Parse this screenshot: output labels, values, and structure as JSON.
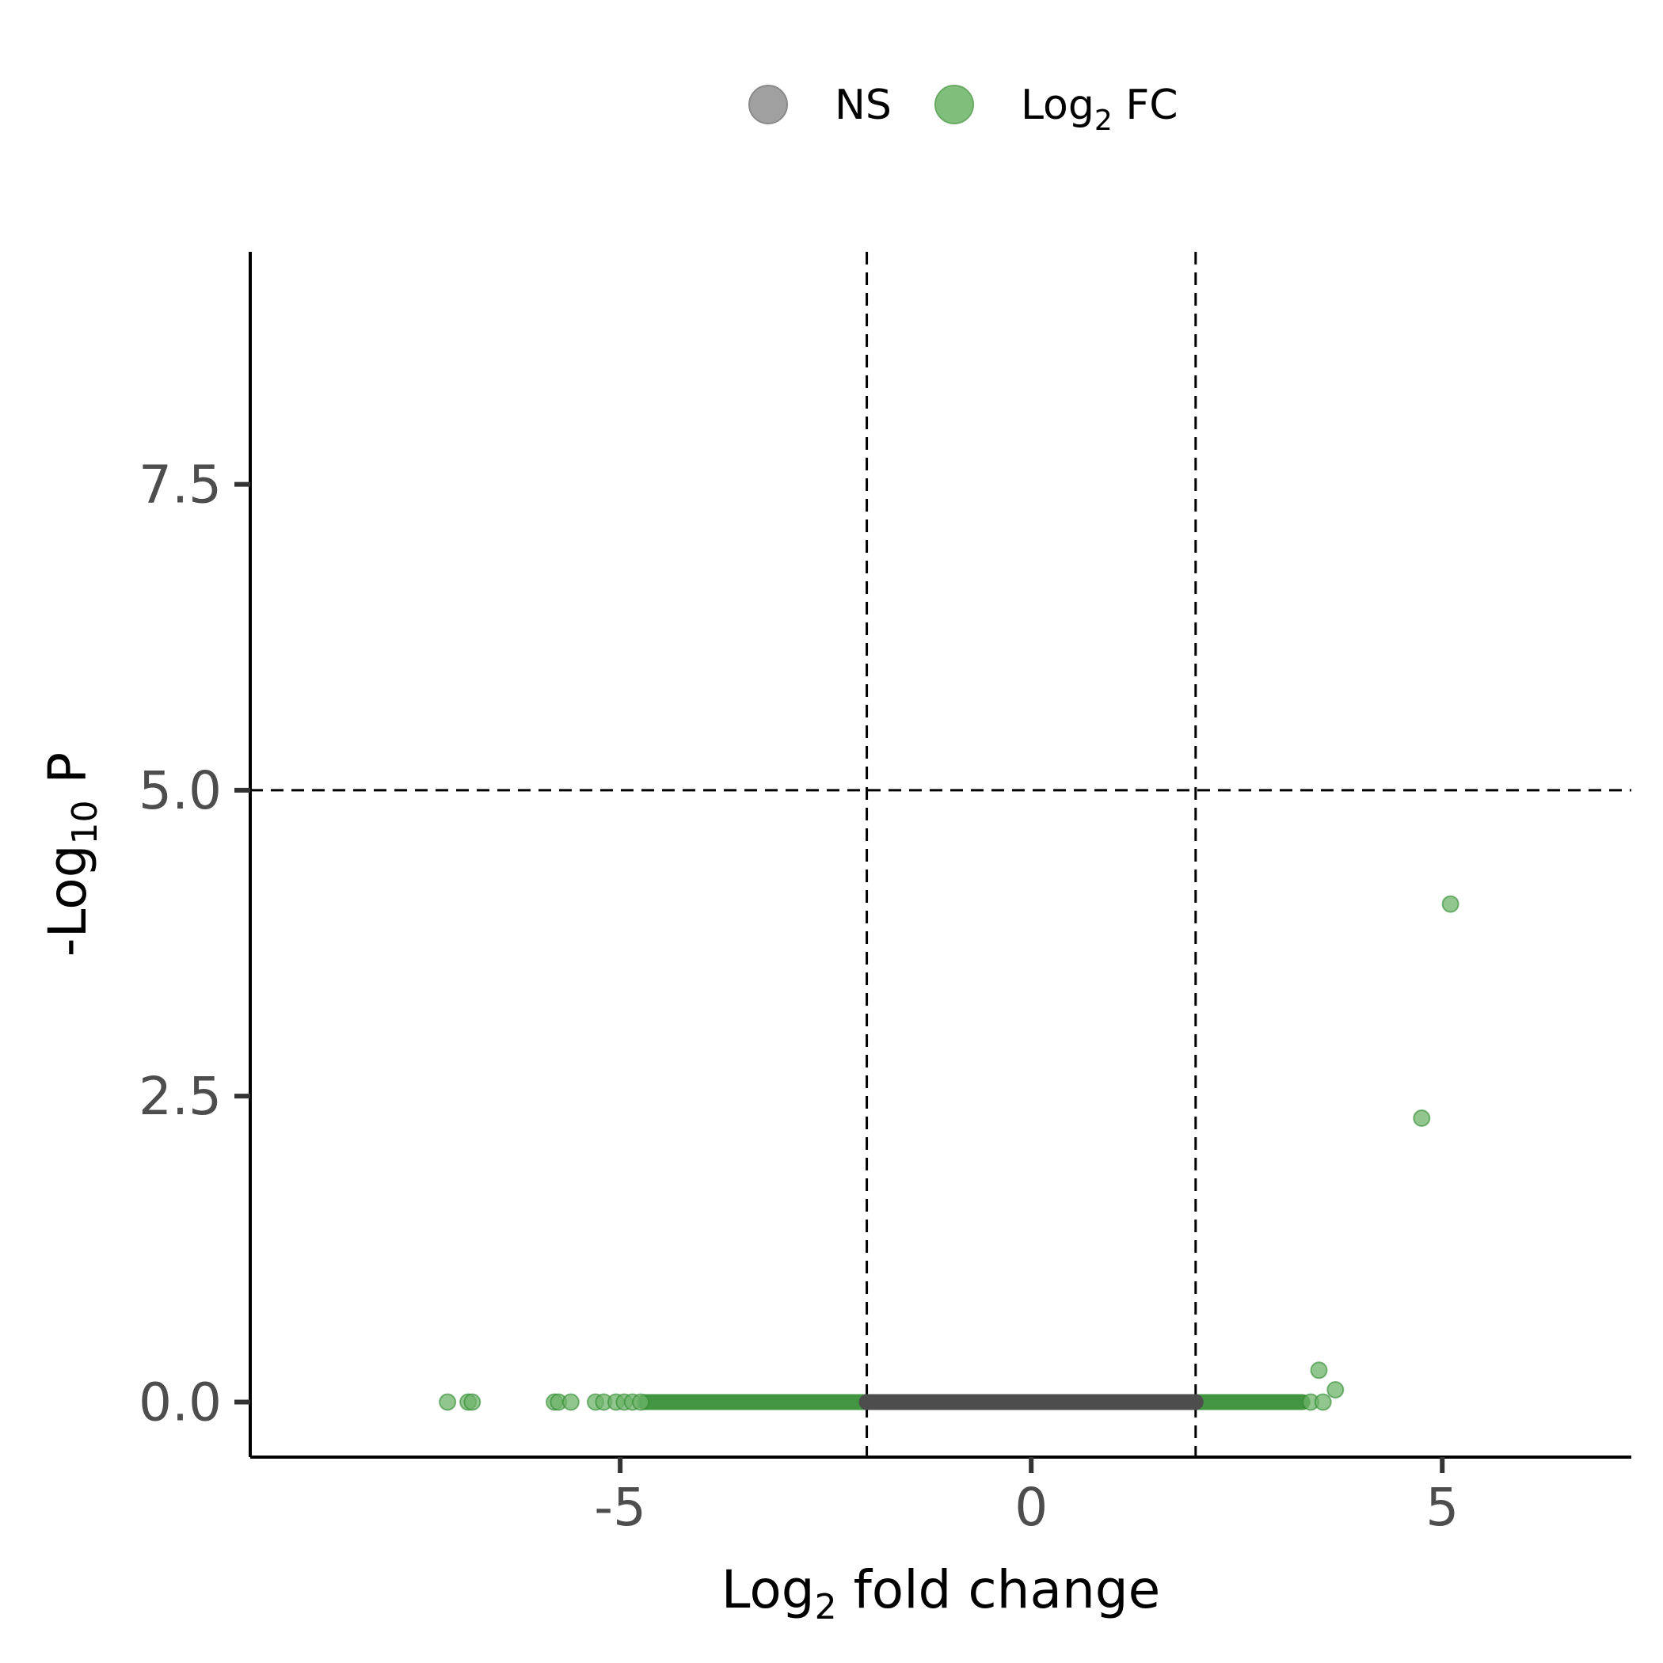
{
  "chart_data": {
    "type": "scatter",
    "title": "",
    "xlabel": {
      "main": "Log",
      "sub": "2",
      "rest": " fold change"
    },
    "ylabel": {
      "main": "-Log",
      "sub": "10",
      "rest": " P"
    },
    "xlim": [
      -9.5,
      7.3
    ],
    "ylim": [
      -0.45,
      9.4
    ],
    "x_ticks": [
      -5,
      0,
      5
    ],
    "x_tick_labels": [
      "-5",
      "0",
      "5"
    ],
    "y_ticks": [
      0,
      2.5,
      5,
      7.5
    ],
    "y_tick_labels": [
      "0.0",
      "2.5",
      "5.0",
      "7.5"
    ],
    "grid": false,
    "cutoffs": {
      "x": [
        -2,
        2
      ],
      "y": 5
    },
    "legend": {
      "placement": "top",
      "items": [
        {
          "key": "ns",
          "main": "NS",
          "sub": "",
          "rest": "",
          "color": "#a0a0a0"
        },
        {
          "key": "fc",
          "main": "Log",
          "sub": "2",
          "rest": " FC",
          "color": "#7fbf7b"
        }
      ]
    },
    "series": [
      {
        "key": "ns",
        "color": "#4d4d4d",
        "note_range": "dense band of points at y ≈ 0 spanning x ≈ -2 to 2",
        "band_x": [
          -2.0,
          2.0
        ],
        "points": [
          {
            "x": -1.9,
            "y": 0
          },
          {
            "x": -1.5,
            "y": 0
          },
          {
            "x": -1.0,
            "y": 0
          },
          {
            "x": -0.5,
            "y": 0
          },
          {
            "x": 0.0,
            "y": 0
          },
          {
            "x": 0.5,
            "y": 0
          },
          {
            "x": 1.0,
            "y": 0
          },
          {
            "x": 1.5,
            "y": 0
          },
          {
            "x": 1.9,
            "y": 0
          }
        ]
      },
      {
        "key": "fc",
        "color": "#2e8b2e",
        "band_x": [
          [
            -4.7,
            -2.0
          ],
          [
            2.0,
            3.3
          ]
        ],
        "points": [
          {
            "x": -7.1,
            "y": 0
          },
          {
            "x": -6.85,
            "y": 0
          },
          {
            "x": -6.8,
            "y": 0
          },
          {
            "x": -5.8,
            "y": 0
          },
          {
            "x": -5.75,
            "y": 0
          },
          {
            "x": -5.6,
            "y": 0
          },
          {
            "x": -5.3,
            "y": 0
          },
          {
            "x": -5.2,
            "y": 0
          },
          {
            "x": -5.05,
            "y": 0
          },
          {
            "x": -4.95,
            "y": 0
          },
          {
            "x": -4.85,
            "y": 0
          },
          {
            "x": -4.75,
            "y": 0
          },
          {
            "x": 3.4,
            "y": 0
          },
          {
            "x": 3.5,
            "y": 0.26
          },
          {
            "x": 3.55,
            "y": 0
          },
          {
            "x": 3.7,
            "y": 0.1
          },
          {
            "x": 4.75,
            "y": 2.32
          },
          {
            "x": 5.1,
            "y": 4.07
          }
        ]
      }
    ]
  }
}
